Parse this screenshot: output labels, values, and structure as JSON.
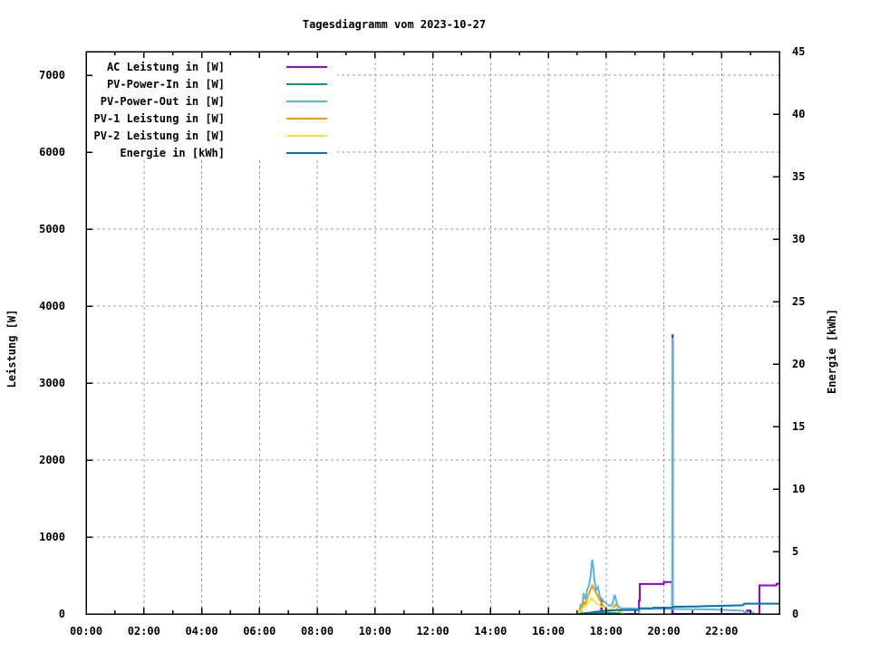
{
  "chart_data": {
    "type": "line",
    "title": "Tagesdiagramm vom 2023-10-27",
    "background": "#ffffff",
    "grid": {
      "on": true,
      "color": "#9c9c9c",
      "dash": "3,3"
    },
    "x_axis": {
      "range_hours": [
        0,
        24
      ],
      "major_tick_step_h": 2,
      "minor_tick_step_h": 1,
      "tick_labels": [
        "00:00",
        "02:00",
        "04:00",
        "06:00",
        "08:00",
        "10:00",
        "12:00",
        "14:00",
        "16:00",
        "18:00",
        "20:00",
        "22:00"
      ]
    },
    "y_left": {
      "label": "Leistung [W]",
      "range": [
        0,
        7306
      ],
      "tick_step": 1000,
      "tick_labels": [
        "0",
        "1000",
        "2000",
        "3000",
        "4000",
        "5000",
        "6000",
        "7000"
      ]
    },
    "y_right": {
      "label": "Energie [kWh]",
      "range": [
        0,
        45
      ],
      "tick_step": 5,
      "tick_labels": [
        "0",
        "5",
        "10",
        "15",
        "20",
        "25",
        "30",
        "35",
        "40",
        "45"
      ]
    },
    "legend": {
      "position": "top-left",
      "entries": [
        {
          "label": "AC Leistung in [W]",
          "color": "#9400d3"
        },
        {
          "label": "PV-Power-In in [W]",
          "color": "#009e73"
        },
        {
          "label": "PV-Power-Out in [W]",
          "color": "#56b4e9"
        },
        {
          "label": "PV-1 Leistung in [W]",
          "color": "#e69f00"
        },
        {
          "label": "PV-2 Leistung in [W]",
          "color": "#f0e442"
        },
        {
          "label": "Energie in [kWh]",
          "color": "#0072b2"
        }
      ]
    },
    "series": [
      {
        "name": "AC Leistung in [W]",
        "color": "#9400d3",
        "axis": "left",
        "points": [
          [
            17.2,
            0
          ],
          [
            17.83,
            0
          ],
          [
            17.84,
            200
          ],
          [
            17.86,
            0
          ],
          [
            19.14,
            0
          ],
          [
            19.14,
            175
          ],
          [
            19.17,
            175
          ],
          [
            19.17,
            390
          ],
          [
            20.0,
            390
          ],
          [
            20.0,
            415
          ],
          [
            20.29,
            415
          ],
          [
            20.29,
            0
          ],
          [
            20.3,
            0
          ],
          [
            20.3,
            3620
          ],
          [
            20.31,
            3620
          ],
          [
            20.31,
            0
          ],
          [
            22.86,
            0
          ],
          [
            22.88,
            45
          ],
          [
            23.0,
            45
          ],
          [
            23.02,
            0
          ],
          [
            23.31,
            0
          ],
          [
            23.31,
            370
          ],
          [
            23.9,
            370
          ],
          [
            23.9,
            392
          ],
          [
            24.0,
            392
          ]
        ]
      },
      {
        "name": "PV-Power-In in [W]",
        "color": "#009e73",
        "axis": "left",
        "points": [
          [
            17.08,
            0
          ],
          [
            17.3,
            12
          ],
          [
            17.6,
            8
          ],
          [
            18.0,
            14
          ],
          [
            18.35,
            10
          ],
          [
            18.6,
            0
          ]
        ]
      },
      {
        "name": "PV-Power-Out in [W]",
        "color": "#56b4e9",
        "axis": "left",
        "points": [
          [
            17.07,
            0
          ],
          [
            17.12,
            130
          ],
          [
            17.17,
            60
          ],
          [
            17.22,
            270
          ],
          [
            17.28,
            190
          ],
          [
            17.35,
            320
          ],
          [
            17.42,
            380
          ],
          [
            17.47,
            520
          ],
          [
            17.52,
            706
          ],
          [
            17.56,
            600
          ],
          [
            17.6,
            430
          ],
          [
            17.66,
            310
          ],
          [
            17.72,
            350
          ],
          [
            17.78,
            230
          ],
          [
            17.85,
            200
          ],
          [
            17.92,
            160
          ],
          [
            18.0,
            140
          ],
          [
            18.08,
            115
          ],
          [
            18.15,
            105
          ],
          [
            18.22,
            130
          ],
          [
            18.3,
            250
          ],
          [
            18.34,
            190
          ],
          [
            18.4,
            110
          ],
          [
            18.5,
            72
          ],
          [
            19.13,
            68
          ],
          [
            19.14,
            0
          ],
          [
            19.15,
            68
          ],
          [
            20.29,
            66
          ],
          [
            20.3,
            3590
          ],
          [
            20.31,
            66
          ],
          [
            20.9,
            62
          ],
          [
            21.8,
            58
          ],
          [
            22.3,
            48
          ],
          [
            22.75,
            42
          ],
          [
            22.8,
            22
          ],
          [
            23.1,
            18
          ],
          [
            23.15,
            0
          ]
        ]
      },
      {
        "name": "PV-1 Leistung in [W]",
        "color": "#e69f00",
        "axis": "left",
        "points": [
          [
            17.07,
            0
          ],
          [
            17.1,
            70
          ],
          [
            17.15,
            35
          ],
          [
            17.22,
            160
          ],
          [
            17.28,
            120
          ],
          [
            17.36,
            220
          ],
          [
            17.45,
            300
          ],
          [
            17.52,
            368
          ],
          [
            17.58,
            330
          ],
          [
            17.65,
            275
          ],
          [
            17.72,
            230
          ],
          [
            17.8,
            170
          ],
          [
            17.88,
            120
          ],
          [
            17.96,
            80
          ],
          [
            18.05,
            55
          ],
          [
            18.15,
            40
          ],
          [
            18.25,
            95
          ],
          [
            18.32,
            120
          ],
          [
            18.4,
            55
          ],
          [
            18.5,
            18
          ],
          [
            18.6,
            0
          ]
        ]
      },
      {
        "name": "PV-2 Leistung in [W]",
        "color": "#f0e442",
        "axis": "left",
        "points": [
          [
            17.07,
            0
          ],
          [
            17.12,
            45
          ],
          [
            17.2,
            80
          ],
          [
            17.3,
            110
          ],
          [
            17.4,
            150
          ],
          [
            17.5,
            205
          ],
          [
            17.58,
            170
          ],
          [
            17.66,
            140
          ],
          [
            17.75,
            115
          ],
          [
            17.85,
            95
          ],
          [
            17.95,
            75
          ],
          [
            18.05,
            60
          ],
          [
            18.15,
            55
          ],
          [
            18.25,
            80
          ],
          [
            18.35,
            95
          ],
          [
            18.45,
            45
          ],
          [
            18.58,
            12
          ],
          [
            18.65,
            0
          ]
        ]
      },
      {
        "name": "Energie in [kWh]",
        "color": "#0072b2",
        "axis": "right",
        "points": [
          [
            17.07,
            0
          ],
          [
            17.2,
            0.04
          ],
          [
            17.35,
            0.08
          ],
          [
            17.5,
            0.13
          ],
          [
            17.68,
            0.18
          ],
          [
            17.88,
            0.23
          ],
          [
            18.1,
            0.27
          ],
          [
            18.35,
            0.31
          ],
          [
            19.13,
            0.33
          ],
          [
            19.14,
            0.45
          ],
          [
            19.6,
            0.45
          ],
          [
            19.62,
            0.5
          ],
          [
            20.31,
            0.5
          ],
          [
            20.33,
            0.58
          ],
          [
            21.1,
            0.6
          ],
          [
            21.6,
            0.63
          ],
          [
            22.0,
            0.65
          ],
          [
            22.4,
            0.68
          ],
          [
            22.75,
            0.7
          ],
          [
            22.78,
            0.82
          ],
          [
            24.0,
            0.82
          ]
        ]
      }
    ]
  }
}
